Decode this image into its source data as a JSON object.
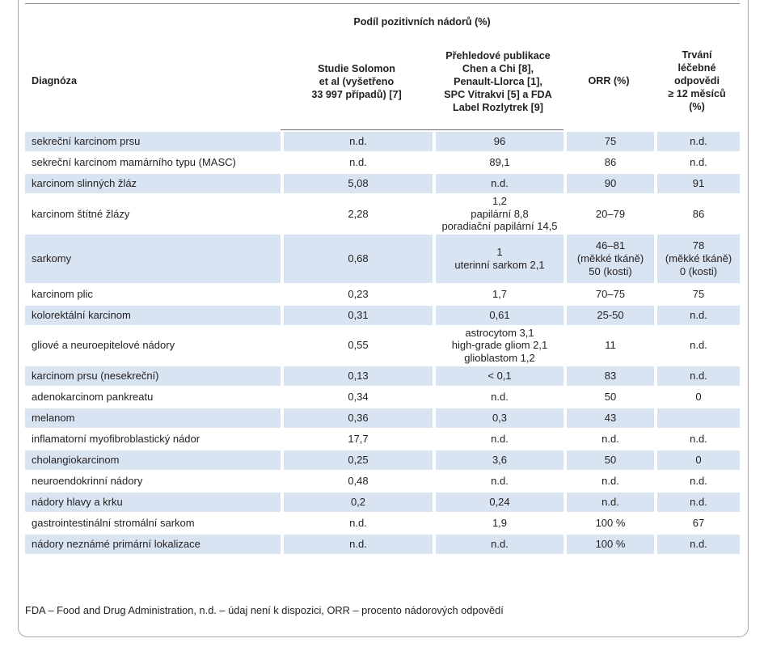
{
  "header": {
    "group_label": "Podíl pozitivních nádorů (%)",
    "col_diagnosis": "Diagnóza",
    "col_solomon": "Studie Solomon\net al (vyšetřeno\n33 997 případů) [7]",
    "col_reviews": "Přehledové publikace\nChen a Chi [8],\nPenault-Llorca [1],\nSPC Vitrakvi [5] a FDA\nLabel Rozlytrek [9]",
    "col_orr": "ORR (%)",
    "col_duration": "Trvání\nléčebné\nodpovědi\n≥ 12 měsíců\n(%)"
  },
  "rows": [
    {
      "diagnosis": "sekreční karcinom prsu",
      "solomon": "n.d.",
      "reviews": "96",
      "orr": "75",
      "duration": "n.d."
    },
    {
      "diagnosis": "sekreční karcinom mamárního typu (MASC)",
      "solomon": "n.d.",
      "reviews": "89,1",
      "orr": "86",
      "duration": "n.d."
    },
    {
      "diagnosis": "karcinom slinných žláz",
      "solomon": "5,08",
      "reviews": "n.d.",
      "orr": "90",
      "duration": "91"
    },
    {
      "diagnosis": "karcinom štítné žlázy",
      "solomon": "2,28",
      "reviews": "1,2\npapilární 8,8\nporadiační papilární 14,5",
      "orr": "20–79",
      "duration": "86"
    },
    {
      "diagnosis": "sarkomy",
      "solomon": "0,68",
      "reviews": "1\nuterinní sarkom 2,1",
      "orr": "46–81\n(měkké tkáně)\n50 (kosti)",
      "duration": "78\n(měkké tkáně)\n0 (kosti)"
    },
    {
      "diagnosis": "karcinom plic",
      "solomon": "0,23",
      "reviews": "1,7",
      "orr": "70–75",
      "duration": "75"
    },
    {
      "diagnosis": "kolorektální karcinom",
      "solomon": "0,31",
      "reviews": "0,61",
      "orr": "25-50",
      "duration": "n.d."
    },
    {
      "diagnosis": "gliové a neuroepitelové nádory",
      "solomon": "0,55",
      "reviews": "astrocytom 3,1\nhigh-grade gliom 2,1\nglioblastom 1,2",
      "orr": "11",
      "duration": "n.d."
    },
    {
      "diagnosis": "karcinom prsu (nesekreční)",
      "solomon": "0,13",
      "reviews": "< 0,1",
      "orr": "83",
      "duration": "n.d."
    },
    {
      "diagnosis": "adenokarcinom pankreatu",
      "solomon": "0,34",
      "reviews": "n.d.",
      "orr": "50",
      "duration": "0"
    },
    {
      "diagnosis": "melanom",
      "solomon": "0,36",
      "reviews": "0,3",
      "orr": "43",
      "duration": ""
    },
    {
      "diagnosis": "inflamatorní myofibroblastický nádor",
      "solomon": "17,7",
      "reviews": "n.d.",
      "orr": "n.d.",
      "duration": "n.d."
    },
    {
      "diagnosis": "cholangiokarcinom",
      "solomon": "0,25",
      "reviews": "3,6",
      "orr": "50",
      "duration": "0"
    },
    {
      "diagnosis": "neuroendokrinní nádory",
      "solomon": "0,48",
      "reviews": "n.d.",
      "orr": "n.d.",
      "duration": "n.d."
    },
    {
      "diagnosis": "nádory hlavy a krku",
      "solomon": "0,2",
      "reviews": "0,24",
      "orr": "n.d.",
      "duration": "n.d."
    },
    {
      "diagnosis": "gastrointestinální stromální sarkom",
      "solomon": "n.d.",
      "reviews": "1,9",
      "orr": "100 %",
      "duration": "67"
    },
    {
      "diagnosis": "nádory neznámé primární lokalizace",
      "solomon": "n.d.",
      "reviews": "n.d.",
      "orr": "100 %",
      "duration": "n.d."
    }
  ],
  "footnote": "FDA – Food and Drug Administration, n.d. – údaj není k dispozici, ORR – procento nádorových odpovědí",
  "colors": {
    "row_band": "#d8e4f2",
    "border": "#a7a9ac",
    "text": "#231f20"
  }
}
